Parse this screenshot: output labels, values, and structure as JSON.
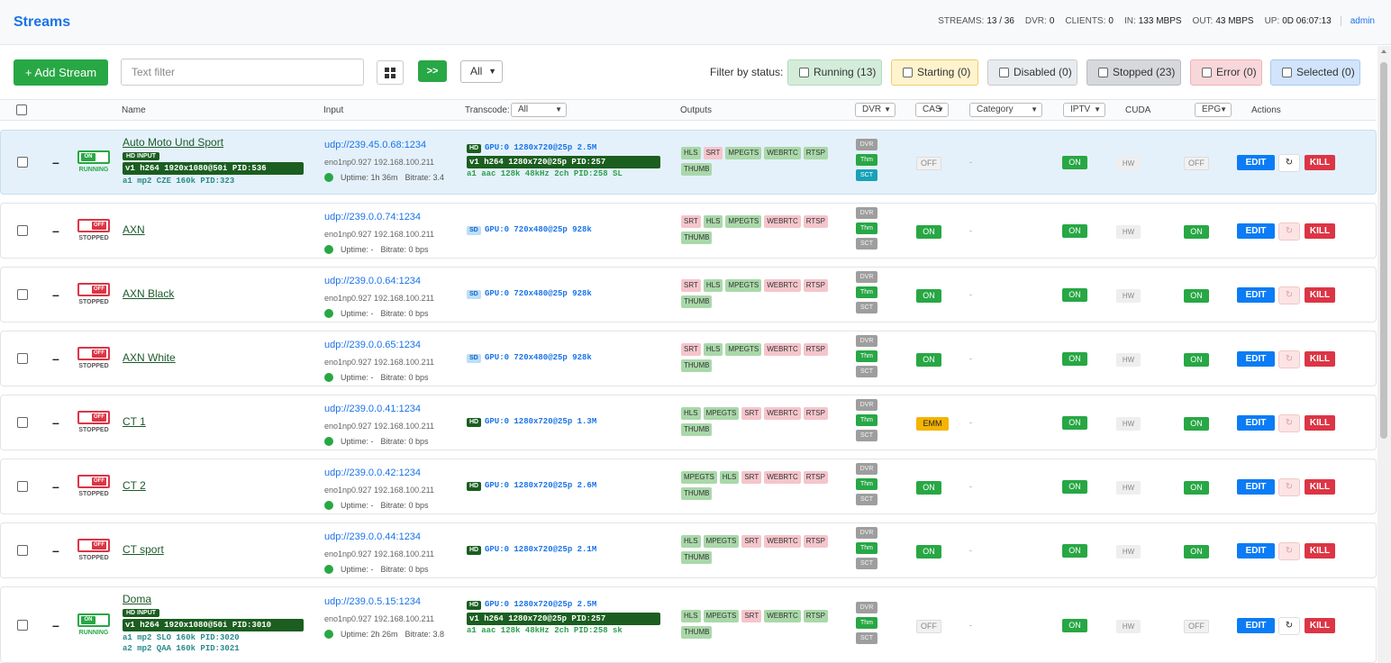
{
  "app": {
    "title": "Streams"
  },
  "stats": [
    {
      "k": "STREAMS:",
      "v": "13 / 36"
    },
    {
      "k": "DVR:",
      "v": "0"
    },
    {
      "k": "CLIENTS:",
      "v": "0"
    },
    {
      "k": "IN:",
      "v": "133 MBPS"
    },
    {
      "k": "OUT:",
      "v": "43 MBPS"
    },
    {
      "k": "UP:",
      "v": "0D 06:07:13"
    }
  ],
  "user": "admin",
  "toolbar": {
    "add_label": "+ Add Stream",
    "filter_placeholder": "Text filter",
    "expand_label": ">>",
    "select_value": "All",
    "filter_by_label": "Filter by status:"
  },
  "status_filters": [
    {
      "label": "Running (13)",
      "bg": "#d4edda",
      "border": "#b1dbbb"
    },
    {
      "label": "Starting (0)",
      "bg": "#fff3cd",
      "border": "#e8cf6a"
    },
    {
      "label": "Disabled (0)",
      "bg": "#e9ecef",
      "border": "#c6cacf"
    },
    {
      "label": "Stopped (23)",
      "bg": "#d6d8db",
      "border": "#b8bcc0"
    },
    {
      "label": "Error (0)",
      "bg": "#f8d7da",
      "border": "#eeb2b8"
    },
    {
      "label": "Selected (0)",
      "bg": "#d1e4fb",
      "border": "#a9c9ef"
    }
  ],
  "columns": {
    "name": "Name",
    "input": "Input",
    "transcode": "Transcode:",
    "transcode_value": "All",
    "outputs": "Outputs",
    "dvr": "DVR",
    "cas": "CAS",
    "category": "Category",
    "iptv": "IPTV",
    "cuda": "CUDA",
    "epg": "EPG",
    "actions": "Actions"
  },
  "actions": {
    "edit": "EDIT",
    "kill": "KILL",
    "reload": "↻"
  },
  "dvr_labels": [
    "DVR",
    "Thm",
    "SCT"
  ],
  "category_empty": "-",
  "rows": [
    {
      "state": "RUNNING",
      "toggle": "ON",
      "name": "Auto Moto Und Sport",
      "input_badge": "HD INPUT",
      "video": "v1 h264 1920x1080@50i PID:536",
      "audio": [
        "a1 mp2 CZE 160k PID:323"
      ],
      "url": "udp://239.45.0.68:1234",
      "iface": "eno1np0.927 192.168.100.211",
      "uptime": "Uptime: 1h 36m",
      "bitrate": "Bitrate: 3.4",
      "tq": "HD",
      "gpu": "GPU:0 1280x720@25p 2.5M",
      "tv": "v1 h264 1280x720@25p PID:257",
      "ta": "a1 aac 128k 48kHz 2ch PID:258 SL",
      "outputs": [
        [
          "HLS",
          "g"
        ],
        [
          "SRT",
          "p"
        ],
        [
          "MPEGTS",
          "g"
        ],
        [
          "WEBRTC",
          "g"
        ],
        [
          "RTSP",
          "g"
        ],
        [
          "THUMB",
          "g"
        ]
      ],
      "dvr": [
        "gr",
        "gn",
        "tl"
      ],
      "cas": "OFF",
      "iptv": "ON",
      "cuda": "HW",
      "epg": "OFF"
    },
    {
      "state": "STOPPED",
      "toggle": "OFF",
      "name": "AXN",
      "url": "udp://239.0.0.74:1234",
      "iface": "eno1np0.927 192.168.100.211",
      "uptime": "Uptime: -",
      "bitrate": "Bitrate: 0 bps",
      "tq": "SD",
      "gpu": "GPU:0 720x480@25p 928k",
      "outputs": [
        [
          "SRT",
          "p"
        ],
        [
          "HLS",
          "g"
        ],
        [
          "MPEGTS",
          "g"
        ],
        [
          "WEBRTC",
          "p"
        ],
        [
          "RTSP",
          "p"
        ],
        [
          "THUMB",
          "g"
        ]
      ],
      "dvr": [
        "gr",
        "gn",
        "gr"
      ],
      "cas": "ON",
      "iptv": "ON",
      "cuda": "HW",
      "epg": "ON"
    },
    {
      "state": "STOPPED",
      "toggle": "OFF",
      "name": "AXN Black",
      "url": "udp://239.0.0.64:1234",
      "iface": "eno1np0.927 192.168.100.211",
      "uptime": "Uptime: -",
      "bitrate": "Bitrate: 0 bps",
      "tq": "SD",
      "gpu": "GPU:0 720x480@25p 928k",
      "outputs": [
        [
          "SRT",
          "p"
        ],
        [
          "HLS",
          "g"
        ],
        [
          "MPEGTS",
          "g"
        ],
        [
          "WEBRTC",
          "p"
        ],
        [
          "RTSP",
          "p"
        ],
        [
          "THUMB",
          "g"
        ]
      ],
      "dvr": [
        "gr",
        "gn",
        "gr"
      ],
      "cas": "ON",
      "iptv": "ON",
      "cuda": "HW",
      "epg": "ON"
    },
    {
      "state": "STOPPED",
      "toggle": "OFF",
      "name": "AXN White",
      "url": "udp://239.0.0.65:1234",
      "iface": "eno1np0.927 192.168.100.211",
      "uptime": "Uptime: -",
      "bitrate": "Bitrate: 0 bps",
      "tq": "SD",
      "gpu": "GPU:0 720x480@25p 928k",
      "outputs": [
        [
          "SRT",
          "p"
        ],
        [
          "HLS",
          "g"
        ],
        [
          "MPEGTS",
          "g"
        ],
        [
          "WEBRTC",
          "p"
        ],
        [
          "RTSP",
          "p"
        ],
        [
          "THUMB",
          "g"
        ]
      ],
      "dvr": [
        "gr",
        "gn",
        "gr"
      ],
      "cas": "ON",
      "iptv": "ON",
      "cuda": "HW",
      "epg": "ON"
    },
    {
      "state": "STOPPED",
      "toggle": "OFF",
      "name": "CT 1",
      "url": "udp://239.0.0.41:1234",
      "iface": "eno1np0.927 192.168.100.211",
      "uptime": "Uptime: -",
      "bitrate": "Bitrate: 0 bps",
      "tq": "HD",
      "gpu": "GPU:0 1280x720@25p 1.3M",
      "outputs": [
        [
          "HLS",
          "g"
        ],
        [
          "MPEGTS",
          "g"
        ],
        [
          "SRT",
          "p"
        ],
        [
          "WEBRTC",
          "p"
        ],
        [
          "RTSP",
          "p"
        ],
        [
          "THUMB",
          "g"
        ]
      ],
      "dvr": [
        "gr",
        "gn",
        "gr"
      ],
      "cas": "EMM",
      "iptv": "ON",
      "cuda": "HW",
      "epg": "ON"
    },
    {
      "state": "STOPPED",
      "toggle": "OFF",
      "name": "CT 2",
      "url": "udp://239.0.0.42:1234",
      "iface": "eno1np0.927 192.168.100.211",
      "uptime": "Uptime: -",
      "bitrate": "Bitrate: 0 bps",
      "tq": "HD",
      "gpu": "GPU:0 1280x720@25p 2.6M",
      "outputs": [
        [
          "MPEGTS",
          "g"
        ],
        [
          "HLS",
          "g"
        ],
        [
          "SRT",
          "p"
        ],
        [
          "WEBRTC",
          "p"
        ],
        [
          "RTSP",
          "p"
        ],
        [
          "THUMB",
          "g"
        ]
      ],
      "dvr": [
        "gr",
        "gn",
        "gr"
      ],
      "cas": "ON",
      "iptv": "ON",
      "cuda": "HW",
      "epg": "ON"
    },
    {
      "state": "STOPPED",
      "toggle": "OFF",
      "name": "CT sport",
      "url": "udp://239.0.0.44:1234",
      "iface": "eno1np0.927 192.168.100.211",
      "uptime": "Uptime: -",
      "bitrate": "Bitrate: 0 bps",
      "tq": "HD",
      "gpu": "GPU:0 1280x720@25p 2.1M",
      "outputs": [
        [
          "HLS",
          "g"
        ],
        [
          "MPEGTS",
          "g"
        ],
        [
          "SRT",
          "p"
        ],
        [
          "WEBRTC",
          "p"
        ],
        [
          "RTSP",
          "p"
        ],
        [
          "THUMB",
          "g"
        ]
      ],
      "dvr": [
        "gr",
        "gn",
        "gr"
      ],
      "cas": "ON",
      "iptv": "ON",
      "cuda": "HW",
      "epg": "ON"
    },
    {
      "state": "RUNNING",
      "toggle": "ON",
      "name": "Doma",
      "input_badge": "HD INPUT",
      "video": "v1 h264 1920x1080@50i PID:3010",
      "audio": [
        "a1 mp2 SLO 160k PID:3020",
        "a2 mp2 QAA 160k PID:3021"
      ],
      "url": "udp://239.0.5.15:1234",
      "iface": "eno1np0.927 192.168.100.211",
      "uptime": "Uptime: 2h 26m",
      "bitrate": "Bitrate: 3.8",
      "tq": "HD",
      "gpu": "GPU:0 1280x720@25p 2.5M",
      "tv": "v1 h264 1280x720@25p PID:257",
      "ta": "a1 aac 128k 48kHz 2ch PID:258 sk",
      "outputs": [
        [
          "HLS",
          "g"
        ],
        [
          "MPEGTS",
          "g"
        ],
        [
          "SRT",
          "p"
        ],
        [
          "WEBRTC",
          "g"
        ],
        [
          "RTSP",
          "g"
        ],
        [
          "THUMB",
          "g"
        ]
      ],
      "dvr": [
        "gr",
        "gn",
        "gr"
      ],
      "cas": "OFF",
      "iptv": "ON",
      "cuda": "HW",
      "epg": "OFF"
    }
  ]
}
